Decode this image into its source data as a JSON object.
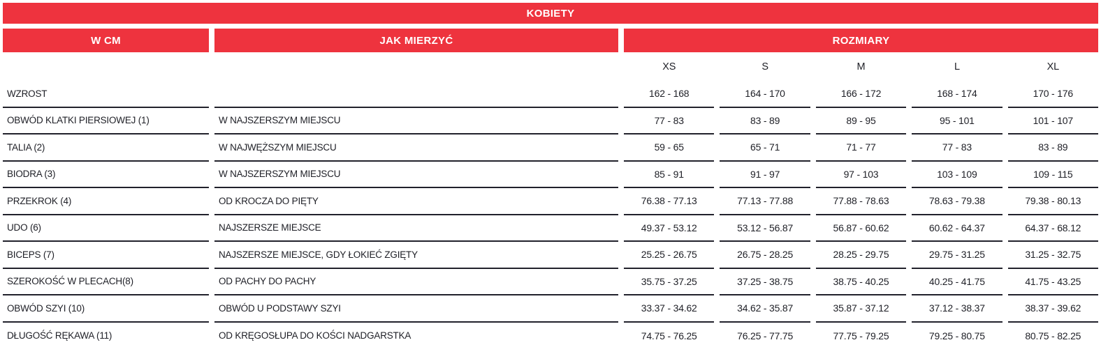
{
  "header": {
    "title": "KOBIETY"
  },
  "columns": {
    "label": "W CM",
    "measure": "JAK MIERZYĆ",
    "sizes_header": "ROZMIARY"
  },
  "sizes": [
    "XS",
    "S",
    "M",
    "L",
    "XL"
  ],
  "rows": [
    {
      "label": "WZROST",
      "measure": "",
      "values": [
        "162 - 168",
        "164 - 170",
        "166 - 172",
        "168 - 174",
        "170 - 176"
      ]
    },
    {
      "label": "OBWÓD KLATKI PIERSIOWEJ (1)",
      "measure": "W NAJSZERSZYM MIEJSCU",
      "values": [
        "77 - 83",
        "83 - 89",
        "89 - 95",
        "95 - 101",
        "101 - 107"
      ]
    },
    {
      "label": "TALIA (2)",
      "measure": "W NAJWĘŻSZYM MIEJSCU",
      "values": [
        "59 - 65",
        "65 - 71",
        "71 - 77",
        "77 - 83",
        "83 - 89"
      ]
    },
    {
      "label": "BIODRA (3)",
      "measure": "W NAJSZERSZYM MIEJSCU",
      "values": [
        "85 - 91",
        "91 - 97",
        "97 - 103",
        "103 - 109",
        "109 - 115"
      ]
    },
    {
      "label": "PRZEKROK (4)",
      "measure": "OD KROCZA DO PIĘTY",
      "values": [
        "76.38 - 77.13",
        "77.13 - 77.88",
        "77.88 - 78.63",
        "78.63 - 79.38",
        "79.38 - 80.13"
      ]
    },
    {
      "label": "UDO (6)",
      "measure": "NAJSZERSZE MIEJSCE",
      "values": [
        "49.37 - 53.12",
        "53.12 - 56.87",
        "56.87 - 60.62",
        "60.62 - 64.37",
        "64.37 - 68.12"
      ]
    },
    {
      "label": "BICEPS (7)",
      "measure": "NAJSZERSZE MIEJSCE, GDY ŁOKIEĆ ZGIĘTY",
      "values": [
        "25.25 - 26.75",
        "26.75 - 28.25",
        "28.25 - 29.75",
        "29.75 - 31.25",
        "31.25 - 32.75"
      ]
    },
    {
      "label": "SZEROKOŚĆ W PLECACH(8)",
      "measure": "OD PACHY DO PACHY",
      "values": [
        "35.75 - 37.25",
        "37.25 - 38.75",
        "38.75 - 40.25",
        "40.25 - 41.75",
        "41.75 - 43.25"
      ]
    },
    {
      "label": "OBWÓD SZYI (10)",
      "measure": "OBWÓD U PODSTAWY SZYI",
      "values": [
        "33.37 - 34.62",
        "34.62 - 35.87",
        "35.87 - 37.12",
        "37.12 - 38.37",
        "38.37 - 39.62"
      ]
    },
    {
      "label": "DŁUGOŚĆ RĘKAWA (11)",
      "measure": "OD KRĘGOSŁUPA DO KOŚCI NADGARSTKA",
      "values": [
        "74.75 - 76.25",
        "76.25 - 77.75",
        "77.75 - 79.25",
        "79.25 - 80.75",
        "80.75 - 82.25"
      ]
    }
  ],
  "colors": {
    "accent_red": "#ee333e",
    "text": "#1e1f26",
    "header_text": "#ffffff",
    "divider": "#21212b"
  }
}
